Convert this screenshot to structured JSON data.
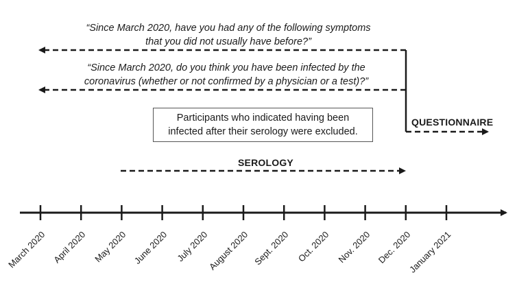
{
  "quotes": {
    "symptoms": {
      "line1": "“Since March 2020, have you had any of the following symptoms",
      "line2": "that you did not usually have before?”"
    },
    "infected": {
      "line1": "“Since March 2020, do you think you have been infected by the",
      "line2": "coronavirus (whether or not confirmed by a physician or a test)?”"
    }
  },
  "note": {
    "line1": "Participants who indicated having been",
    "line2": "infected after their serology were excluded."
  },
  "labels": {
    "questionnaire": "QUESTIONNAIRE",
    "serology": "SEROLOGY"
  },
  "timeline": {
    "months": [
      "March 2020",
      "April 2020",
      "May 2020",
      "June 2020",
      "July 2020",
      "August 2020",
      "Sept. 2020",
      "Oct. 2020",
      "Nov. 2020",
      "Dec. 2020",
      "January 2021"
    ]
  },
  "colors": {
    "line": "#1a1a1a",
    "box_border": "#555555"
  }
}
